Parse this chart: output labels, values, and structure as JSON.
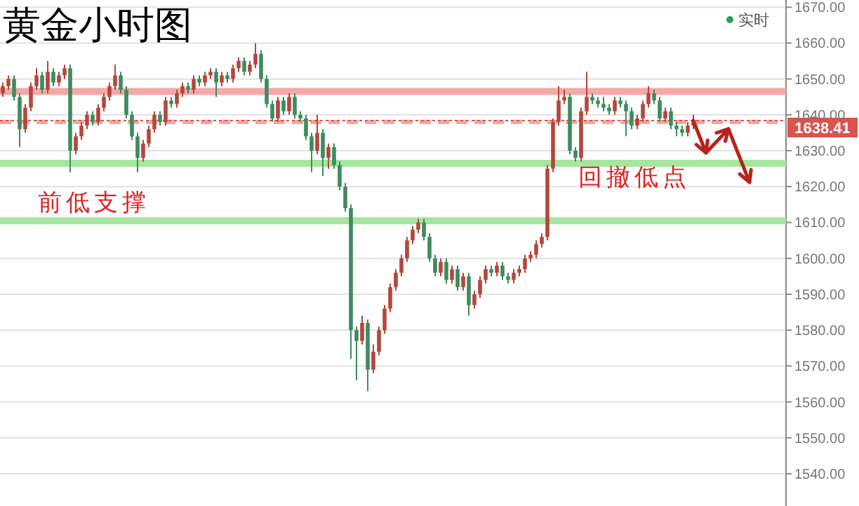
{
  "chart_data": {
    "type": "candlestick",
    "title": "黄金小时图",
    "categories": [
      null,
      null,
      null,
      null,
      null,
      null,
      null,
      null,
      null,
      null,
      null,
      null,
      null,
      null,
      null,
      null,
      null,
      null,
      null,
      null,
      null,
      null,
      null,
      null,
      null,
      null,
      null,
      null,
      null,
      null,
      null,
      null,
      null,
      null,
      null,
      null,
      null,
      null,
      null,
      null,
      null,
      null,
      null,
      null,
      null,
      null,
      null,
      null,
      null,
      null,
      null,
      null,
      null,
      null,
      null,
      null,
      null,
      null,
      null,
      null,
      null,
      null,
      null,
      null,
      null,
      null,
      null,
      null,
      null,
      null,
      null,
      null,
      null,
      null,
      null,
      null,
      null,
      null,
      null,
      null,
      null,
      null,
      null,
      null,
      null,
      null,
      null,
      null,
      null,
      null,
      null,
      null,
      null,
      null,
      null,
      null,
      null,
      null,
      null,
      null,
      null,
      null,
      null,
      null,
      null,
      null,
      null,
      null,
      null,
      null,
      null,
      null,
      null,
      null,
      null,
      null,
      null,
      null,
      null,
      null,
      null,
      null,
      null,
      null,
      null,
      null,
      null,
      null,
      null,
      null,
      null,
      null,
      null,
      null,
      null,
      null,
      null,
      null,
      null,
      null
    ],
    "ohlc": [
      [
        1646,
        1649,
        1645,
        1648
      ],
      [
        1648,
        1651,
        1647,
        1650
      ],
      [
        1650,
        1651,
        1644,
        1645
      ],
      [
        1645,
        1646,
        1631,
        1636
      ],
      [
        1636,
        1643,
        1635,
        1642
      ],
      [
        1642,
        1649,
        1641,
        1648
      ],
      [
        1648,
        1653,
        1647,
        1651
      ],
      [
        1651,
        1652,
        1646,
        1647
      ],
      [
        1647,
        1655,
        1646,
        1652
      ],
      [
        1652,
        1653,
        1648,
        1649
      ],
      [
        1649,
        1652,
        1648,
        1651
      ],
      [
        1651,
        1654,
        1650,
        1653
      ],
      [
        1653,
        1654,
        1624,
        1630
      ],
      [
        1630,
        1635,
        1629,
        1634
      ],
      [
        1634,
        1638,
        1633,
        1637
      ],
      [
        1637,
        1641,
        1636,
        1640
      ],
      [
        1640,
        1641,
        1637,
        1638
      ],
      [
        1638,
        1643,
        1637,
        1642
      ],
      [
        1642,
        1646,
        1641,
        1645
      ],
      [
        1645,
        1649,
        1644,
        1648
      ],
      [
        1648,
        1654,
        1647,
        1651
      ],
      [
        1651,
        1652,
        1646,
        1647
      ],
      [
        1647,
        1648,
        1639,
        1640
      ],
      [
        1640,
        1641,
        1633,
        1634
      ],
      [
        1634,
        1635,
        1624,
        1628
      ],
      [
        1628,
        1633,
        1627,
        1632
      ],
      [
        1632,
        1637,
        1631,
        1636
      ],
      [
        1636,
        1641,
        1635,
        1640
      ],
      [
        1640,
        1641,
        1637,
        1638
      ],
      [
        1638,
        1645,
        1637,
        1644
      ],
      [
        1644,
        1645,
        1642,
        1643
      ],
      [
        1643,
        1647,
        1642,
        1646
      ],
      [
        1646,
        1649,
        1645,
        1648
      ],
      [
        1648,
        1649,
        1646,
        1647
      ],
      [
        1647,
        1651,
        1646,
        1650
      ],
      [
        1650,
        1651,
        1648,
        1649
      ],
      [
        1649,
        1652,
        1648,
        1651
      ],
      [
        1651,
        1653,
        1650,
        1652
      ],
      [
        1652,
        1653,
        1645,
        1649
      ],
      [
        1649,
        1652,
        1648,
        1651
      ],
      [
        1651,
        1652,
        1649,
        1650
      ],
      [
        1650,
        1654,
        1649,
        1653
      ],
      [
        1653,
        1656,
        1652,
        1655
      ],
      [
        1655,
        1656,
        1651,
        1652
      ],
      [
        1652,
        1655,
        1651,
        1654
      ],
      [
        1654,
        1660,
        1653,
        1657
      ],
      [
        1657,
        1658,
        1649,
        1650
      ],
      [
        1650,
        1651,
        1642,
        1643
      ],
      [
        1643,
        1644,
        1638,
        1639
      ],
      [
        1639,
        1645,
        1638,
        1644
      ],
      [
        1644,
        1645,
        1640,
        1641
      ],
      [
        1641,
        1646,
        1640,
        1645
      ],
      [
        1645,
        1646,
        1639,
        1640
      ],
      [
        1640,
        1641,
        1638,
        1639
      ],
      [
        1639,
        1640,
        1633,
        1634
      ],
      [
        1634,
        1635,
        1624,
        1630
      ],
      [
        1630,
        1640,
        1629,
        1635
      ],
      [
        1635,
        1636,
        1623,
        1628
      ],
      [
        1628,
        1632,
        1625,
        1631
      ],
      [
        1631,
        1632,
        1625,
        1626
      ],
      [
        1626,
        1627,
        1619,
        1620
      ],
      [
        1620,
        1621,
        1613,
        1614
      ],
      [
        1614,
        1615,
        1572,
        1580
      ],
      [
        1580,
        1581,
        1566,
        1577
      ],
      [
        1577,
        1584,
        1576,
        1582
      ],
      [
        1582,
        1583,
        1563,
        1569
      ],
      [
        1569,
        1576,
        1568,
        1574
      ],
      [
        1574,
        1581,
        1573,
        1580
      ],
      [
        1580,
        1587,
        1579,
        1586
      ],
      [
        1586,
        1593,
        1585,
        1592
      ],
      [
        1592,
        1597,
        1591,
        1596
      ],
      [
        1596,
        1601,
        1595,
        1600
      ],
      [
        1600,
        1606,
        1599,
        1605
      ],
      [
        1605,
        1609,
        1604,
        1608
      ],
      [
        1608,
        1611,
        1607,
        1610
      ],
      [
        1610,
        1611,
        1605,
        1606
      ],
      [
        1606,
        1607,
        1599,
        1600
      ],
      [
        1600,
        1601,
        1595,
        1596
      ],
      [
        1596,
        1600,
        1595,
        1599
      ],
      [
        1599,
        1600,
        1593,
        1594
      ],
      [
        1594,
        1598,
        1593,
        1597
      ],
      [
        1597,
        1598,
        1591,
        1592
      ],
      [
        1592,
        1596,
        1591,
        1595
      ],
      [
        1595,
        1596,
        1584,
        1587
      ],
      [
        1587,
        1591,
        1586,
        1590
      ],
      [
        1590,
        1595,
        1589,
        1594
      ],
      [
        1594,
        1598,
        1593,
        1597
      ],
      [
        1597,
        1598,
        1595,
        1596
      ],
      [
        1596,
        1599,
        1595,
        1598
      ],
      [
        1598,
        1599,
        1594,
        1595
      ],
      [
        1595,
        1596,
        1593,
        1594
      ],
      [
        1594,
        1597,
        1593,
        1596
      ],
      [
        1596,
        1598,
        1595,
        1597
      ],
      [
        1597,
        1601,
        1596,
        1600
      ],
      [
        1600,
        1602,
        1599,
        1601
      ],
      [
        1601,
        1605,
        1600,
        1604
      ],
      [
        1604,
        1607,
        1603,
        1606
      ],
      [
        1606,
        1626,
        1605,
        1625
      ],
      [
        1625,
        1639,
        1624,
        1638
      ],
      [
        1638,
        1648,
        1637,
        1644
      ],
      [
        1644,
        1647,
        1643,
        1645
      ],
      [
        1645,
        1646,
        1629,
        1630
      ],
      [
        1630,
        1631,
        1627,
        1628
      ],
      [
        1628,
        1642,
        1627,
        1641
      ],
      [
        1641,
        1652,
        1640,
        1645
      ],
      [
        1645,
        1646,
        1643,
        1644
      ],
      [
        1644,
        1645,
        1642,
        1643
      ],
      [
        1643,
        1645,
        1641,
        1642
      ],
      [
        1642,
        1643,
        1640,
        1641
      ],
      [
        1641,
        1645,
        1640,
        1644
      ],
      [
        1644,
        1645,
        1642,
        1643
      ],
      [
        1643,
        1644,
        1634,
        1641
      ],
      [
        1641,
        1642,
        1636,
        1637
      ],
      [
        1637,
        1640,
        1636,
        1639
      ],
      [
        1639,
        1644,
        1638,
        1643
      ],
      [
        1643,
        1648,
        1642,
        1646
      ],
      [
        1646,
        1647,
        1643,
        1644
      ],
      [
        1644,
        1645,
        1638,
        1639
      ],
      [
        1639,
        1642,
        1638,
        1641
      ],
      [
        1641,
        1642,
        1636,
        1637
      ],
      [
        1637,
        1638,
        1634,
        1636
      ],
      [
        1636,
        1637,
        1634,
        1635
      ],
      [
        1635,
        1638,
        1634,
        1637
      ],
      [
        1637,
        1640,
        1636,
        1638.41
      ],
      null,
      null,
      null,
      null,
      null,
      null,
      null,
      null,
      null,
      null,
      null,
      null,
      null,
      null,
      null,
      null
    ],
    "ref_lines": [
      {
        "axis": "y",
        "value": 1646.5,
        "color": "#f5a8a8"
      },
      {
        "axis": "y",
        "value": 1626.5,
        "color": "#a6e6a0"
      },
      {
        "axis": "y",
        "value": 1610.5,
        "color": "#a6e6a0"
      },
      {
        "axis": "y",
        "value": 1638,
        "color": "#f0a8a0",
        "line_style": "dashed"
      },
      {
        "axis": "y",
        "value": 1638.41,
        "label": "1638.41",
        "color": "#d9534f",
        "line_style": "dotted"
      }
    ],
    "annotations": [
      "前低支撑",
      "回撤低点",
      "实时"
    ],
    "ylim": [
      1531,
      1672
    ],
    "yticks": [
      {
        "value": 1540,
        "label": "1540.00"
      },
      {
        "value": 1550,
        "label": "1550.00"
      },
      {
        "value": 1560,
        "label": "1560.00"
      },
      {
        "value": 1570,
        "label": "1570.00"
      },
      {
        "value": 1580,
        "label": "1580.00"
      },
      {
        "value": 1590,
        "label": "1590.00"
      },
      {
        "value": 1600,
        "label": "1600.00"
      },
      {
        "value": 1610,
        "label": "1610.00"
      },
      {
        "value": 1620,
        "label": "1620.00"
      },
      {
        "value": 1630,
        "label": "1630.00"
      },
      {
        "value": 1640,
        "label": "1640.00"
      },
      {
        "value": 1650,
        "label": "1650.00"
      },
      {
        "value": 1660,
        "label": "1660.00"
      },
      {
        "value": 1670,
        "label": "1670.00"
      }
    ],
    "grid": "y",
    "tick_labels": "y"
  }
}
